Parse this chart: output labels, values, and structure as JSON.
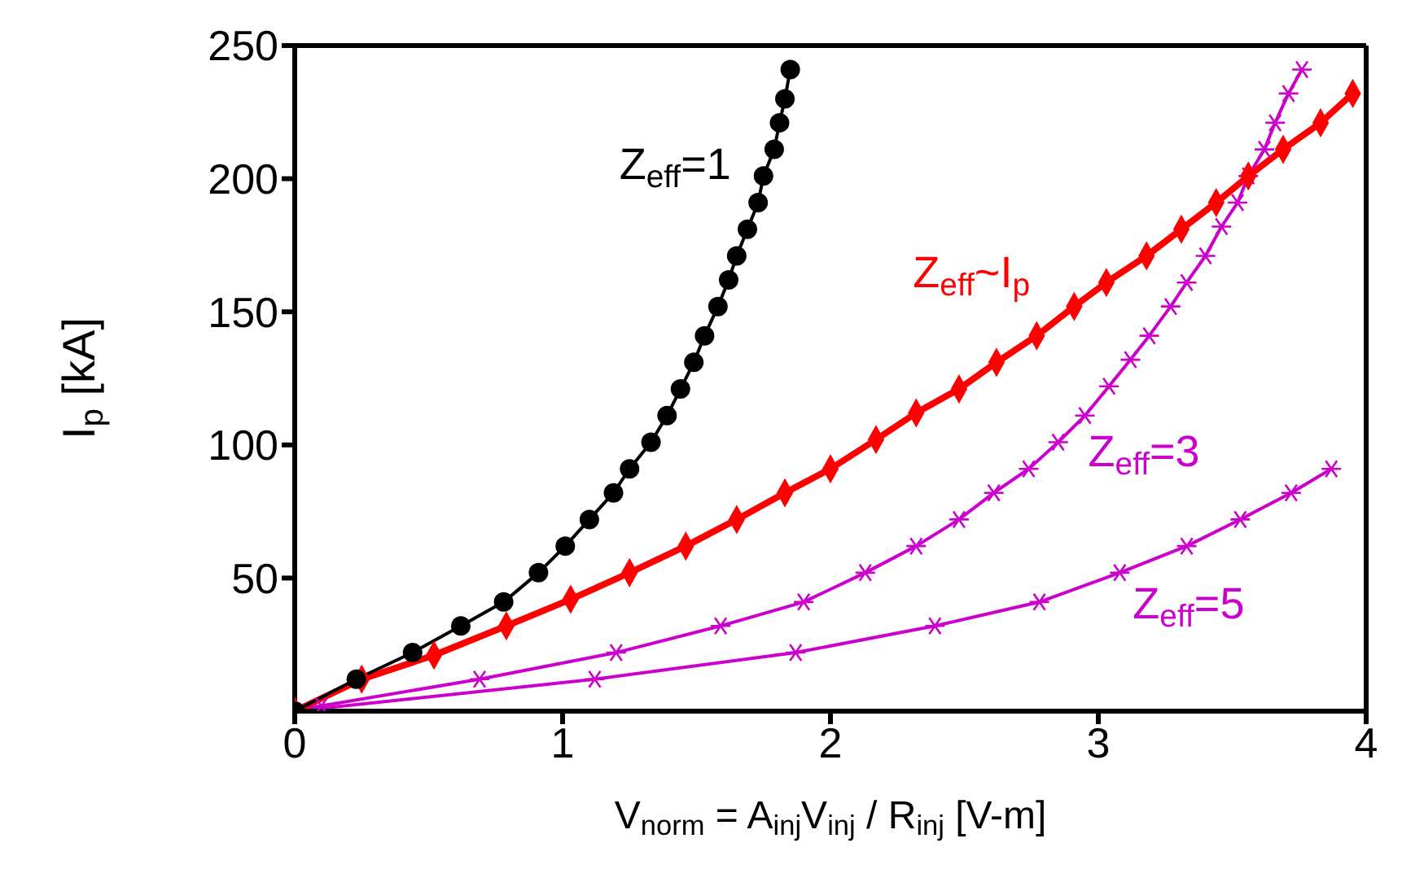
{
  "chart_data": {
    "type": "line",
    "xlabel": "V$_{norm}$ = A$_{inj}$V$_{inj}$ / R$_{inj}$   [V-m]",
    "ylabel": "I$_{p}$ [kA]",
    "xlim": [
      0,
      4
    ],
    "xticks": [
      0,
      1,
      2,
      3,
      4
    ],
    "ylim": [
      0,
      250
    ],
    "yticks": [
      50,
      100,
      150,
      200,
      250
    ],
    "legend": false,
    "line_style": "solid",
    "series": [
      {
        "name": "Z$_{eff}$=1",
        "color": "#000000",
        "marker": "circle",
        "x": [
          0,
          0.23,
          0.44,
          0.62,
          0.78,
          0.91,
          1.01,
          1.1,
          1.19,
          1.25,
          1.33,
          1.39,
          1.44,
          1.49,
          1.53,
          1.58,
          1.62,
          1.65,
          1.69,
          1.73,
          1.75,
          1.79,
          1.81,
          1.83,
          1.85
        ],
        "values": [
          0,
          12,
          22,
          32,
          41,
          52,
          62,
          72,
          82,
          91,
          101,
          111,
          121,
          131,
          141,
          152,
          162,
          171,
          181,
          191,
          201,
          211,
          221,
          230,
          241
        ]
      },
      {
        "name": "Z$_{eff}$~I$_{p}$",
        "color": "#ff0000",
        "marker": "diamond",
        "x": [
          0,
          0.25,
          0.52,
          0.79,
          1.03,
          1.25,
          1.46,
          1.65,
          1.83,
          2,
          2.17,
          2.32,
          2.48,
          2.62,
          2.77,
          2.91,
          3.03,
          3.18,
          3.31,
          3.44,
          3.56,
          3.69,
          3.83,
          3.95
        ],
        "values": [
          0,
          12,
          21,
          32,
          42,
          52,
          62,
          72,
          82,
          91,
          102,
          112,
          121,
          131,
          141,
          152,
          161,
          171,
          181,
          191,
          201,
          211,
          221,
          232
        ]
      },
      {
        "name": "Z$_{eff}$=3",
        "color": "#cc00cc",
        "marker": "cross",
        "x": [
          0,
          0.1,
          0.69,
          1.2,
          1.59,
          1.9,
          2.13,
          2.32,
          2.48,
          2.61,
          2.74,
          2.85,
          2.95,
          3.04,
          3.12,
          3.19,
          3.27,
          3.33,
          3.4,
          3.46,
          3.52,
          3.56,
          3.62,
          3.66,
          3.71,
          3.76
        ],
        "values": [
          0,
          2,
          12,
          22,
          32,
          41,
          52,
          62,
          72,
          82,
          91,
          101,
          111,
          122,
          132,
          141,
          152,
          161,
          171,
          182,
          191,
          201,
          211,
          221,
          232,
          241
        ]
      },
      {
        "name": "Z$_{eff}$=5",
        "color": "#cc00cc",
        "marker": "cross",
        "x": [
          0,
          1.12,
          1.87,
          2.39,
          2.78,
          3.08,
          3.33,
          3.53,
          3.72,
          3.87
        ],
        "values": [
          0,
          12,
          22,
          32,
          41,
          52,
          62,
          72,
          82,
          91
        ]
      }
    ]
  }
}
